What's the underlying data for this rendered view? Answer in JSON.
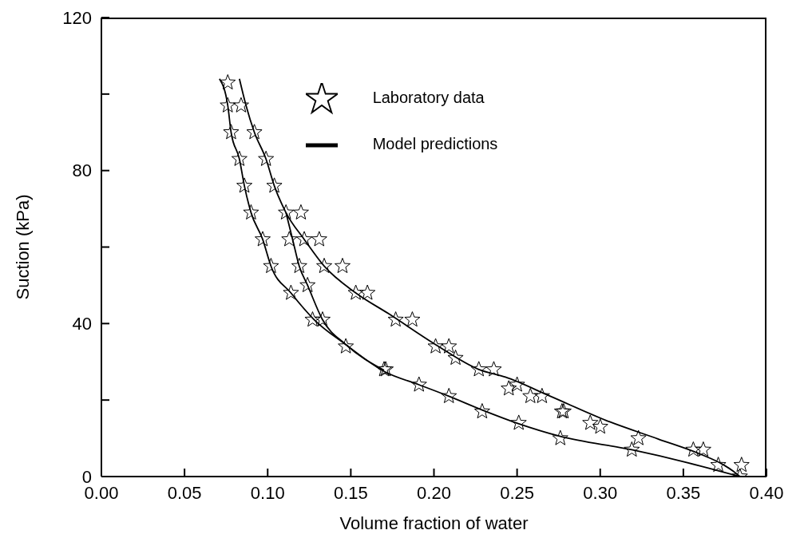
{
  "chart_data": {
    "type": "scatter",
    "xlabel": "Volume fraction of water",
    "ylabel": "Suction (kPa)",
    "xlim": [
      0,
      0.4
    ],
    "ylim": [
      0,
      120
    ],
    "xticks": [
      {
        "value": 0,
        "label": "0.00"
      },
      {
        "value": 0.05,
        "label": "0.05"
      },
      {
        "value": 0.1,
        "label": "0.10"
      },
      {
        "value": 0.15,
        "label": "0.15"
      },
      {
        "value": 0.2,
        "label": "0.20"
      },
      {
        "value": 0.25,
        "label": "0.25"
      },
      {
        "value": 0.3,
        "label": "0.30"
      },
      {
        "value": 0.35,
        "label": "0.35"
      },
      {
        "value": 0.4,
        "label": "0.40"
      }
    ],
    "yticks": [
      0,
      {
        "value": 20,
        "label": null
      },
      40,
      {
        "value": 60,
        "label": null
      },
      80,
      {
        "value": 100,
        "label": null
      },
      120
    ],
    "legend": "top right",
    "series": [
      {
        "name": "Laboratory data",
        "color": "#000000",
        "marker": "star",
        "x": [
          0.076,
          0.076,
          0.084,
          0.078,
          0.092,
          0.083,
          0.099,
          0.086,
          0.104,
          0.09,
          0.111,
          0.12,
          0.097,
          0.113,
          0.122,
          0.131,
          0.102,
          0.119,
          0.134,
          0.145,
          0.124,
          0.114,
          0.153,
          0.16,
          0.127,
          0.133,
          0.177,
          0.187,
          0.147,
          0.201,
          0.209,
          0.213,
          0.17,
          0.171,
          0.227,
          0.236,
          0.191,
          0.25,
          0.245,
          0.209,
          0.258,
          0.265,
          0.229,
          0.277,
          0.278,
          0.251,
          0.294,
          0.3,
          0.276,
          0.323,
          0.319,
          0.356,
          0.362,
          0.371,
          0.385,
          0.384
        ],
        "values": [
          103,
          97,
          97,
          90,
          90,
          83,
          83,
          76,
          76,
          69,
          69,
          69,
          62,
          62,
          62,
          62,
          55,
          55,
          55,
          55,
          50,
          48,
          48,
          48,
          41,
          41,
          41,
          41,
          34,
          34,
          34,
          31,
          28,
          28,
          28,
          28,
          24,
          24,
          23,
          21,
          21,
          21,
          17,
          17,
          17,
          14,
          14,
          13,
          10,
          10,
          7,
          7,
          7,
          3,
          3,
          0
        ]
      },
      {
        "type": "line",
        "name": "Model predictions",
        "color": "#000000",
        "x": [
          0.071,
          0.076,
          0.078,
          0.083,
          0.086,
          0.09,
          0.097,
          0.102,
          0.114,
          0.128,
          0.147,
          0.17,
          0.191,
          0.209,
          0.229,
          0.251,
          0.276,
          0.319,
          0.351,
          0.384
        ],
        "values": [
          104,
          97,
          90,
          83,
          76,
          69,
          62,
          55,
          48,
          41,
          34.5,
          27.5,
          24,
          21,
          17.4,
          13.8,
          10.5,
          7,
          3.8,
          0
        ]
      },
      {
        "type": "line",
        "color": "#000000",
        "x": [
          0.083,
          0.087,
          0.092,
          0.099,
          0.104,
          0.111,
          0.122,
          0.134,
          0.153,
          0.173,
          0.201,
          0.227,
          0.243,
          0.27,
          0.304,
          0.335,
          0.36,
          0.374,
          0.38,
          0.384
        ],
        "values": [
          104,
          97,
          90,
          83,
          76,
          69,
          62,
          55,
          48,
          42.5,
          34.5,
          28,
          26,
          21,
          14.6,
          9.8,
          5.9,
          3.1,
          1.4,
          0
        ]
      },
      {
        "type": "line",
        "color": "#000000",
        "x": [
          0.111,
          0.115,
          0.119,
          0.124,
          0.133,
          0.147,
          0.17
        ],
        "values": [
          69,
          62,
          55,
          50,
          41,
          34.5,
          27.8
        ]
      }
    ]
  }
}
